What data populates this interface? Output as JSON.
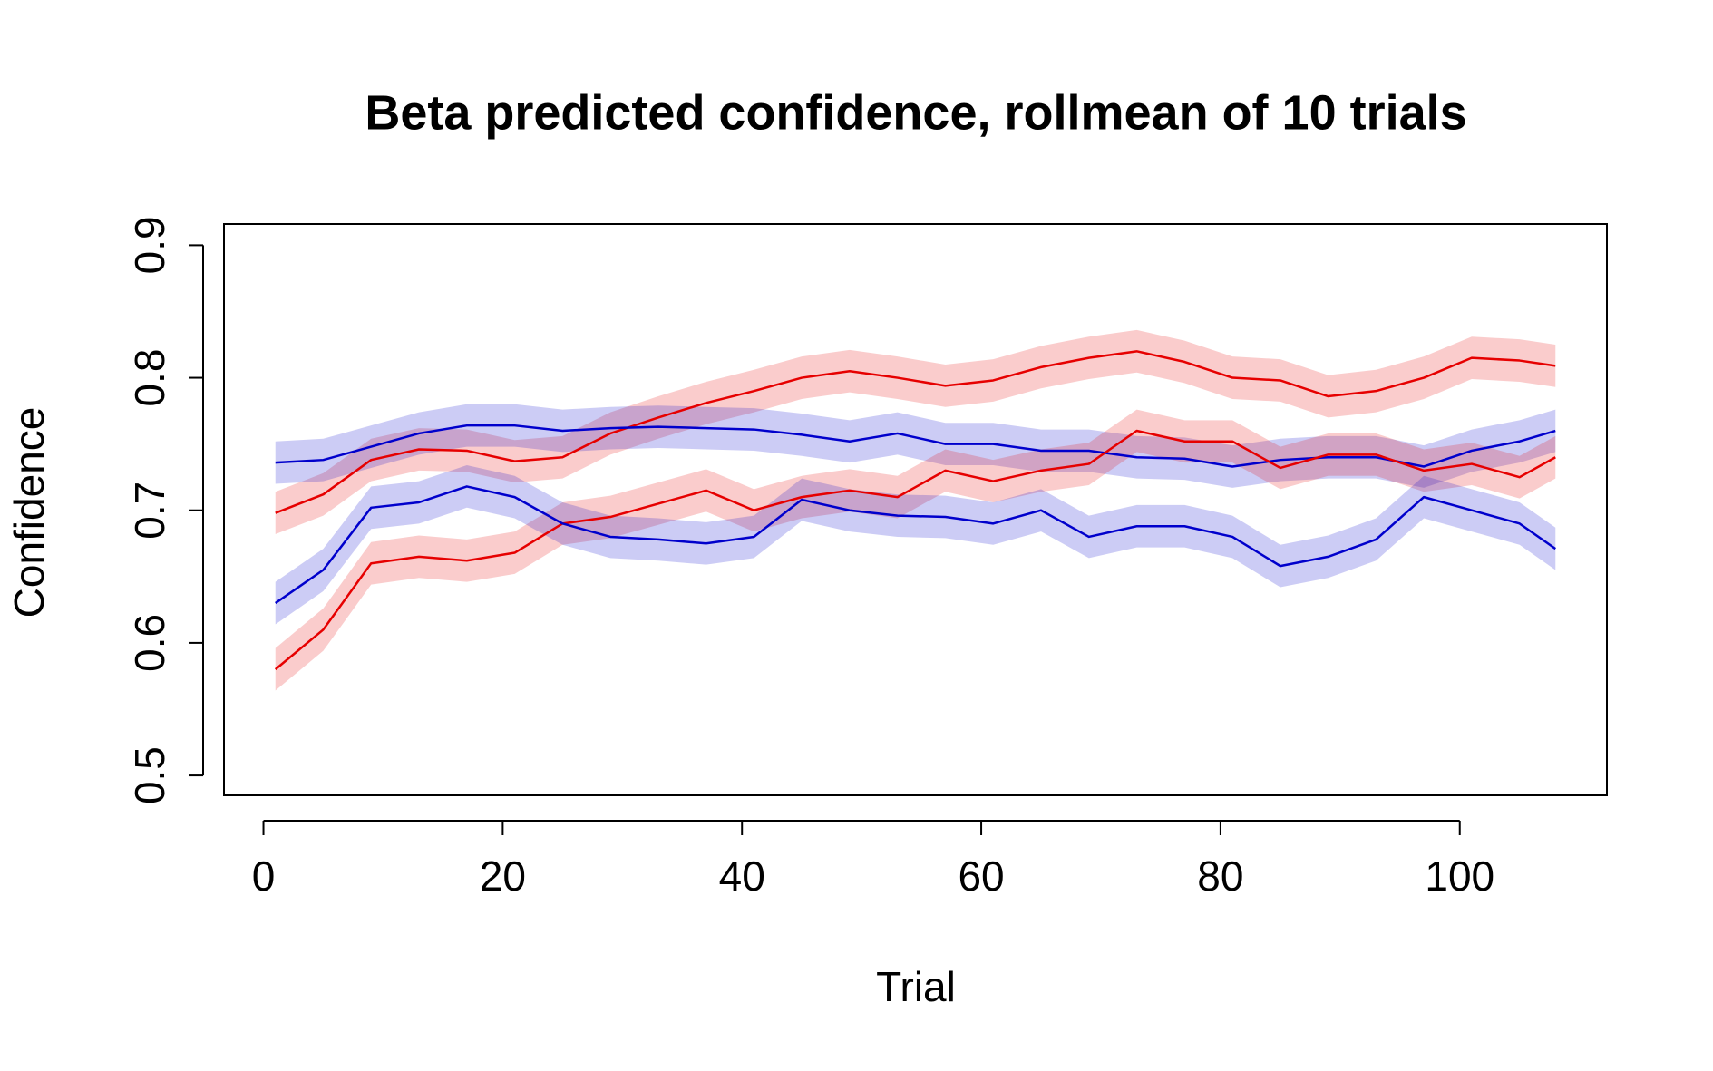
{
  "chart_data": {
    "type": "line",
    "title": "Beta predicted confidence, rollmean of  10 trials",
    "x_label": "Trial",
    "y_label": "Confidence",
    "x": [
      1,
      5,
      9,
      13,
      17,
      21,
      25,
      29,
      33,
      37,
      41,
      45,
      49,
      53,
      57,
      61,
      65,
      69,
      73,
      77,
      81,
      85,
      89,
      93,
      97,
      101,
      105,
      108
    ],
    "series": [
      {
        "color": "#e60000",
        "error": 0.016,
        "values": [
          0.698,
          0.712,
          0.738,
          0.746,
          0.745,
          0.737,
          0.74,
          0.758,
          0.77,
          0.781,
          0.79,
          0.8,
          0.805,
          0.8,
          0.794,
          0.798,
          0.808,
          0.815,
          0.82,
          0.812,
          0.8,
          0.798,
          0.786,
          0.79,
          0.8,
          0.815,
          0.813,
          0.809
        ]
      },
      {
        "color": "#0000cc",
        "error": 0.016,
        "values": [
          0.736,
          0.738,
          0.748,
          0.758,
          0.764,
          0.764,
          0.76,
          0.762,
          0.763,
          0.762,
          0.761,
          0.757,
          0.752,
          0.758,
          0.75,
          0.75,
          0.745,
          0.745,
          0.74,
          0.739,
          0.733,
          0.738,
          0.74,
          0.74,
          0.733,
          0.745,
          0.752,
          0.76
        ]
      },
      {
        "color": "#e60000",
        "error": 0.016,
        "values": [
          0.58,
          0.61,
          0.66,
          0.665,
          0.662,
          0.668,
          0.69,
          0.695,
          0.705,
          0.715,
          0.7,
          0.71,
          0.715,
          0.71,
          0.73,
          0.722,
          0.73,
          0.735,
          0.76,
          0.752,
          0.752,
          0.732,
          0.742,
          0.742,
          0.73,
          0.735,
          0.725,
          0.74
        ]
      },
      {
        "color": "#0000cc",
        "error": 0.016,
        "values": [
          0.63,
          0.655,
          0.702,
          0.706,
          0.718,
          0.71,
          0.69,
          0.68,
          0.678,
          0.675,
          0.68,
          0.708,
          0.7,
          0.696,
          0.695,
          0.69,
          0.7,
          0.68,
          0.688,
          0.688,
          0.68,
          0.658,
          0.665,
          0.678,
          0.71,
          0.7,
          0.69,
          0.671
        ]
      }
    ],
    "xlim": [
      -3.3,
      112.3
    ],
    "xticks": [
      0,
      20,
      40,
      60,
      80,
      100
    ],
    "ylim": [
      0.485,
      0.916
    ],
    "yticks": [
      0.5,
      0.6,
      0.7,
      0.8,
      0.9
    ],
    "grid": false
  }
}
